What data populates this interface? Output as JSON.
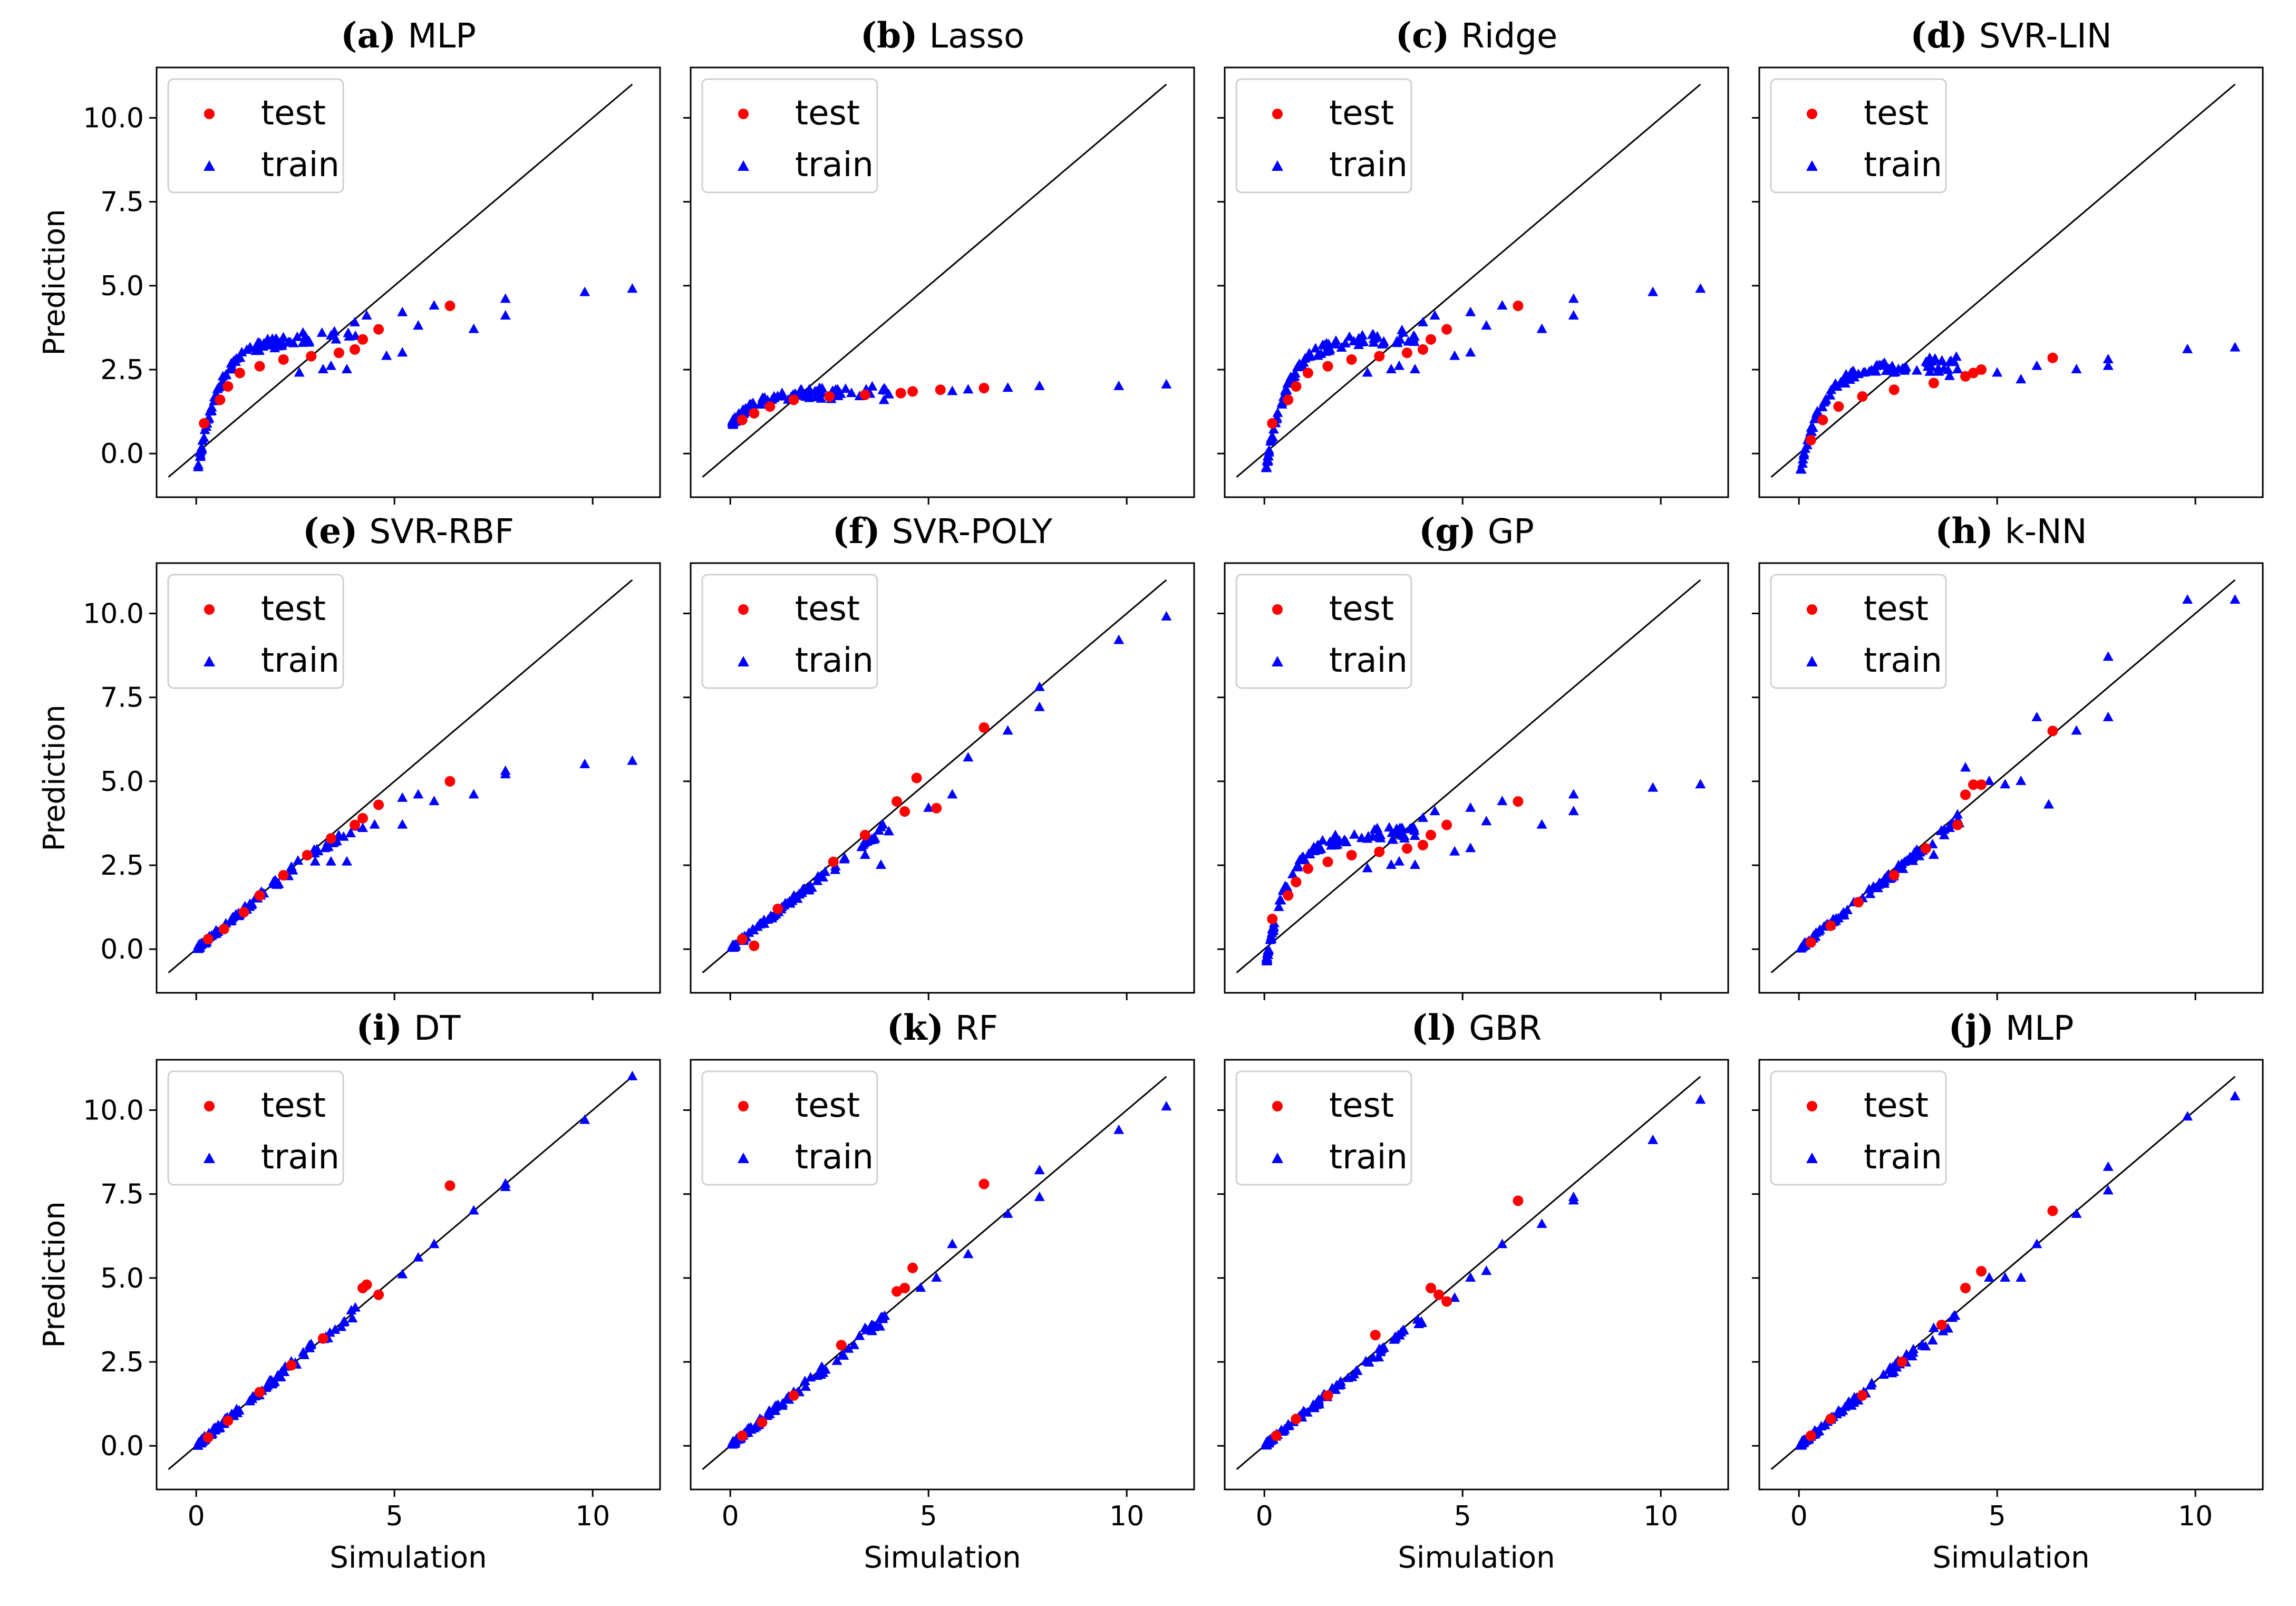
{
  "figure": {
    "xlabel": "Simulation",
    "ylabel": "Prediction",
    "xlim": [
      -1.0,
      11.7
    ],
    "ylim": [
      -1.3,
      11.5
    ],
    "xticks": [
      0,
      5,
      10
    ],
    "yticks": [
      0.0,
      2.5,
      5.0,
      7.5,
      10.0
    ],
    "xtick_labels": [
      "0",
      "5",
      "10"
    ],
    "ytick_labels": [
      "0.0",
      "2.5",
      "5.0",
      "7.5",
      "10.0"
    ],
    "legend": {
      "placement": "top-left",
      "entries": [
        "test",
        "train"
      ]
    },
    "colors": {
      "test": "#ff0000",
      "train": "#0000ff",
      "identity_line": "#000000"
    }
  },
  "chart_data": [
    {
      "type": "scatter",
      "tag": "(a)",
      "name": "MLP",
      "model": "saturating",
      "params": {
        "A": 5.4,
        "k": 0.2
      },
      "test_points": [
        [
          0.2,
          0.9
        ],
        [
          0.6,
          1.6
        ],
        [
          0.8,
          2.0
        ],
        [
          1.1,
          2.4
        ],
        [
          1.6,
          2.6
        ],
        [
          2.2,
          2.8
        ],
        [
          2.9,
          2.9
        ],
        [
          3.6,
          3.0
        ],
        [
          4.0,
          3.1
        ],
        [
          4.2,
          3.4
        ],
        [
          4.6,
          3.7
        ],
        [
          6.4,
          4.4
        ]
      ],
      "train_extra": [
        [
          3.2,
          2.5
        ],
        [
          3.8,
          2.5
        ],
        [
          4.0,
          3.9
        ],
        [
          4.3,
          4.1
        ],
        [
          5.2,
          4.2
        ],
        [
          5.6,
          3.8
        ],
        [
          6.0,
          4.4
        ],
        [
          7.0,
          3.7
        ],
        [
          7.8,
          4.6
        ],
        [
          7.8,
          4.1
        ],
        [
          9.8,
          4.8
        ],
        [
          11.0,
          4.9
        ],
        [
          2.6,
          2.4
        ],
        [
          3.4,
          2.6
        ],
        [
          4.8,
          2.9
        ],
        [
          5.2,
          3.0
        ]
      ]
    },
    {
      "type": "scatter",
      "tag": "(b)",
      "name": "Lasso",
      "model": "lasso",
      "params": {},
      "test_points": [
        [
          0.3,
          1.0
        ],
        [
          0.6,
          1.2
        ],
        [
          1.0,
          1.4
        ],
        [
          1.6,
          1.6
        ],
        [
          2.5,
          1.7
        ],
        [
          3.4,
          1.75
        ],
        [
          4.3,
          1.8
        ],
        [
          4.6,
          1.85
        ],
        [
          5.3,
          1.9
        ],
        [
          6.4,
          1.95
        ]
      ],
      "train_extra": [
        [
          5.6,
          1.85
        ],
        [
          6.0,
          1.9
        ],
        [
          7.0,
          1.95
        ],
        [
          7.8,
          2.0
        ],
        [
          9.8,
          2.0
        ],
        [
          11.0,
          2.05
        ]
      ]
    },
    {
      "type": "scatter",
      "tag": "(c)",
      "name": "Ridge",
      "model": "saturating",
      "params": {
        "A": 5.4,
        "k": 0.2
      },
      "test_points": [
        [
          0.2,
          0.9
        ],
        [
          0.6,
          1.6
        ],
        [
          0.8,
          2.0
        ],
        [
          1.1,
          2.4
        ],
        [
          1.6,
          2.6
        ],
        [
          2.2,
          2.8
        ],
        [
          2.9,
          2.9
        ],
        [
          3.6,
          3.0
        ],
        [
          4.0,
          3.1
        ],
        [
          4.2,
          3.4
        ],
        [
          4.6,
          3.7
        ],
        [
          6.4,
          4.4
        ]
      ],
      "train_extra": [
        [
          3.2,
          2.5
        ],
        [
          3.8,
          2.5
        ],
        [
          4.0,
          3.9
        ],
        [
          4.3,
          4.1
        ],
        [
          5.2,
          4.2
        ],
        [
          5.6,
          3.8
        ],
        [
          6.0,
          4.4
        ],
        [
          7.0,
          3.7
        ],
        [
          7.8,
          4.6
        ],
        [
          7.8,
          4.1
        ],
        [
          9.8,
          4.8
        ],
        [
          11.0,
          4.9
        ],
        [
          2.6,
          2.4
        ],
        [
          3.4,
          2.6
        ],
        [
          4.8,
          2.9
        ],
        [
          5.2,
          3.0
        ]
      ]
    },
    {
      "type": "scatter",
      "tag": "(d)",
      "name": "SVR-LIN",
      "model": "saturating",
      "params": {
        "A": 3.4,
        "k": 0.22
      },
      "test_points": [
        [
          0.3,
          0.4
        ],
        [
          0.6,
          1.0
        ],
        [
          1.0,
          1.4
        ],
        [
          1.6,
          1.7
        ],
        [
          2.4,
          1.9
        ],
        [
          3.4,
          2.1
        ],
        [
          4.2,
          2.3
        ],
        [
          4.4,
          2.4
        ],
        [
          4.6,
          2.5
        ],
        [
          6.4,
          2.85
        ]
      ],
      "train_extra": [
        [
          3.8,
          2.3
        ],
        [
          4.0,
          2.5
        ],
        [
          5.0,
          2.4
        ],
        [
          5.6,
          2.2
        ],
        [
          6.0,
          2.6
        ],
        [
          7.0,
          2.5
        ],
        [
          7.8,
          2.8
        ],
        [
          7.8,
          2.6
        ],
        [
          9.8,
          3.1
        ],
        [
          11.0,
          3.15
        ]
      ]
    },
    {
      "type": "scatter",
      "tag": "(e)",
      "name": "SVR-RBF",
      "model": "piecewise",
      "params": {
        "knee": 3.0,
        "slope_hi": 0.6
      },
      "test_points": [
        [
          0.3,
          0.3
        ],
        [
          0.7,
          0.6
        ],
        [
          1.2,
          1.1
        ],
        [
          1.6,
          1.6
        ],
        [
          2.2,
          2.2
        ],
        [
          2.8,
          2.8
        ],
        [
          3.4,
          3.3
        ],
        [
          4.0,
          3.7
        ],
        [
          4.2,
          3.9
        ],
        [
          4.6,
          4.3
        ],
        [
          6.4,
          5.0
        ]
      ],
      "train_extra": [
        [
          3.0,
          2.6
        ],
        [
          3.4,
          2.6
        ],
        [
          3.8,
          2.6
        ],
        [
          4.2,
          3.6
        ],
        [
          4.5,
          3.7
        ],
        [
          5.2,
          3.7
        ],
        [
          5.2,
          4.5
        ],
        [
          5.6,
          4.6
        ],
        [
          6.0,
          4.4
        ],
        [
          7.0,
          4.6
        ],
        [
          7.8,
          5.3
        ],
        [
          7.8,
          5.2
        ],
        [
          9.8,
          5.5
        ],
        [
          11.0,
          5.6
        ]
      ]
    },
    {
      "type": "scatter",
      "tag": "(f)",
      "name": "SVR-POLY",
      "model": "linear",
      "params": {
        "slope": 0.93
      },
      "test_points": [
        [
          0.3,
          0.3
        ],
        [
          0.6,
          0.1
        ],
        [
          1.2,
          1.2
        ],
        [
          2.6,
          2.6
        ],
        [
          3.4,
          3.4
        ],
        [
          4.2,
          4.4
        ],
        [
          4.4,
          4.1
        ],
        [
          4.7,
          5.1
        ],
        [
          5.2,
          4.2
        ],
        [
          6.4,
          6.6
        ]
      ],
      "train_extra": [
        [
          3.8,
          2.5
        ],
        [
          4.0,
          3.5
        ],
        [
          5.6,
          4.6
        ],
        [
          6.0,
          5.7
        ],
        [
          7.0,
          6.5
        ],
        [
          7.8,
          7.8
        ],
        [
          7.8,
          7.2
        ],
        [
          9.8,
          9.2
        ],
        [
          11.0,
          9.9
        ],
        [
          5.0,
          4.2
        ],
        [
          3.4,
          2.8
        ]
      ]
    },
    {
      "type": "scatter",
      "tag": "(g)",
      "name": "GP",
      "model": "saturating",
      "params": {
        "A": 5.4,
        "k": 0.2
      },
      "test_points": [
        [
          0.2,
          0.9
        ],
        [
          0.6,
          1.6
        ],
        [
          0.8,
          2.0
        ],
        [
          1.1,
          2.4
        ],
        [
          1.6,
          2.6
        ],
        [
          2.2,
          2.8
        ],
        [
          2.9,
          2.9
        ],
        [
          3.6,
          3.0
        ],
        [
          4.0,
          3.1
        ],
        [
          4.2,
          3.4
        ],
        [
          4.6,
          3.7
        ],
        [
          6.4,
          4.4
        ]
      ],
      "train_extra": [
        [
          3.2,
          2.5
        ],
        [
          3.8,
          2.5
        ],
        [
          4.0,
          3.9
        ],
        [
          4.3,
          4.1
        ],
        [
          5.2,
          4.2
        ],
        [
          5.6,
          3.8
        ],
        [
          6.0,
          4.4
        ],
        [
          7.0,
          3.7
        ],
        [
          7.8,
          4.6
        ],
        [
          7.8,
          4.1
        ],
        [
          9.8,
          4.8
        ],
        [
          11.0,
          4.9
        ],
        [
          2.6,
          2.4
        ],
        [
          3.4,
          2.6
        ],
        [
          4.8,
          2.9
        ],
        [
          5.2,
          3.0
        ]
      ]
    },
    {
      "type": "scatter",
      "tag": "(h)",
      "name": "k-NN",
      "model": "linear",
      "params": {
        "slope": 0.95
      },
      "test_points": [
        [
          0.3,
          0.2
        ],
        [
          0.8,
          0.7
        ],
        [
          1.5,
          1.4
        ],
        [
          2.4,
          2.2
        ],
        [
          3.2,
          3.0
        ],
        [
          4.0,
          3.7
        ],
        [
          4.2,
          4.6
        ],
        [
          4.4,
          4.9
        ],
        [
          4.6,
          4.9
        ],
        [
          6.4,
          6.5
        ]
      ],
      "train_extra": [
        [
          3.4,
          2.8
        ],
        [
          3.8,
          3.6
        ],
        [
          4.2,
          5.4
        ],
        [
          4.8,
          5.0
        ],
        [
          5.2,
          4.9
        ],
        [
          5.6,
          5.0
        ],
        [
          6.0,
          6.9
        ],
        [
          6.3,
          4.3
        ],
        [
          7.0,
          6.5
        ],
        [
          7.8,
          8.7
        ],
        [
          7.8,
          6.9
        ],
        [
          9.8,
          10.4
        ],
        [
          11.0,
          10.4
        ],
        [
          4.0,
          4.0
        ]
      ]
    },
    {
      "type": "scatter",
      "tag": "(i)",
      "name": "DT",
      "model": "linear",
      "params": {
        "slope": 1.0
      },
      "test_points": [
        [
          0.3,
          0.25
        ],
        [
          0.8,
          0.75
        ],
        [
          1.6,
          1.6
        ],
        [
          2.4,
          2.4
        ],
        [
          3.2,
          3.2
        ],
        [
          4.2,
          4.7
        ],
        [
          4.3,
          4.8
        ],
        [
          4.6,
          4.5
        ],
        [
          6.4,
          7.75
        ]
      ],
      "train_extra": [
        [
          5.2,
          5.1
        ],
        [
          5.6,
          5.6
        ],
        [
          6.0,
          6.0
        ],
        [
          7.0,
          7.0
        ],
        [
          7.8,
          7.8
        ],
        [
          7.8,
          7.7
        ],
        [
          9.8,
          9.7
        ],
        [
          11.0,
          11.0
        ]
      ]
    },
    {
      "type": "scatter",
      "tag": "(k)",
      "name": "RF",
      "model": "linear",
      "params": {
        "slope": 0.97
      },
      "test_points": [
        [
          0.3,
          0.3
        ],
        [
          0.8,
          0.7
        ],
        [
          1.6,
          1.5
        ],
        [
          2.8,
          3.0
        ],
        [
          4.2,
          4.6
        ],
        [
          4.4,
          4.7
        ],
        [
          4.6,
          5.3
        ],
        [
          6.4,
          7.8
        ]
      ],
      "train_extra": [
        [
          3.4,
          3.5
        ],
        [
          4.8,
          4.7
        ],
        [
          5.2,
          5.0
        ],
        [
          5.6,
          6.0
        ],
        [
          6.0,
          5.7
        ],
        [
          7.0,
          6.9
        ],
        [
          7.8,
          8.2
        ],
        [
          7.8,
          7.4
        ],
        [
          9.8,
          9.4
        ],
        [
          11.0,
          10.1
        ]
      ]
    },
    {
      "type": "scatter",
      "tag": "(l)",
      "name": "GBR",
      "model": "linear",
      "params": {
        "slope": 0.95
      },
      "test_points": [
        [
          0.3,
          0.3
        ],
        [
          0.8,
          0.8
        ],
        [
          1.6,
          1.5
        ],
        [
          2.8,
          3.3
        ],
        [
          4.2,
          4.7
        ],
        [
          4.4,
          4.5
        ],
        [
          4.6,
          4.3
        ],
        [
          6.4,
          7.3
        ]
      ],
      "train_extra": [
        [
          4.8,
          4.4
        ],
        [
          5.2,
          5.0
        ],
        [
          5.6,
          5.2
        ],
        [
          6.0,
          6.0
        ],
        [
          7.0,
          6.6
        ],
        [
          7.8,
          7.3
        ],
        [
          7.8,
          7.4
        ],
        [
          9.8,
          9.1
        ],
        [
          11.0,
          10.3
        ]
      ]
    },
    {
      "type": "scatter",
      "tag": "(j)",
      "name": "MLP",
      "model": "linear",
      "params": {
        "slope": 0.96
      },
      "test_points": [
        [
          0.3,
          0.3
        ],
        [
          0.8,
          0.8
        ],
        [
          1.6,
          1.5
        ],
        [
          2.6,
          2.5
        ],
        [
          3.6,
          3.6
        ],
        [
          4.2,
          4.7
        ],
        [
          4.6,
          5.2
        ],
        [
          6.4,
          7.0
        ]
      ],
      "train_extra": [
        [
          3.4,
          3.5
        ],
        [
          4.8,
          5.0
        ],
        [
          5.2,
          5.0
        ],
        [
          5.6,
          5.0
        ],
        [
          6.0,
          6.0
        ],
        [
          7.0,
          6.9
        ],
        [
          7.8,
          8.3
        ],
        [
          7.8,
          7.6
        ],
        [
          9.8,
          9.8
        ],
        [
          11.0,
          10.4
        ]
      ]
    }
  ]
}
